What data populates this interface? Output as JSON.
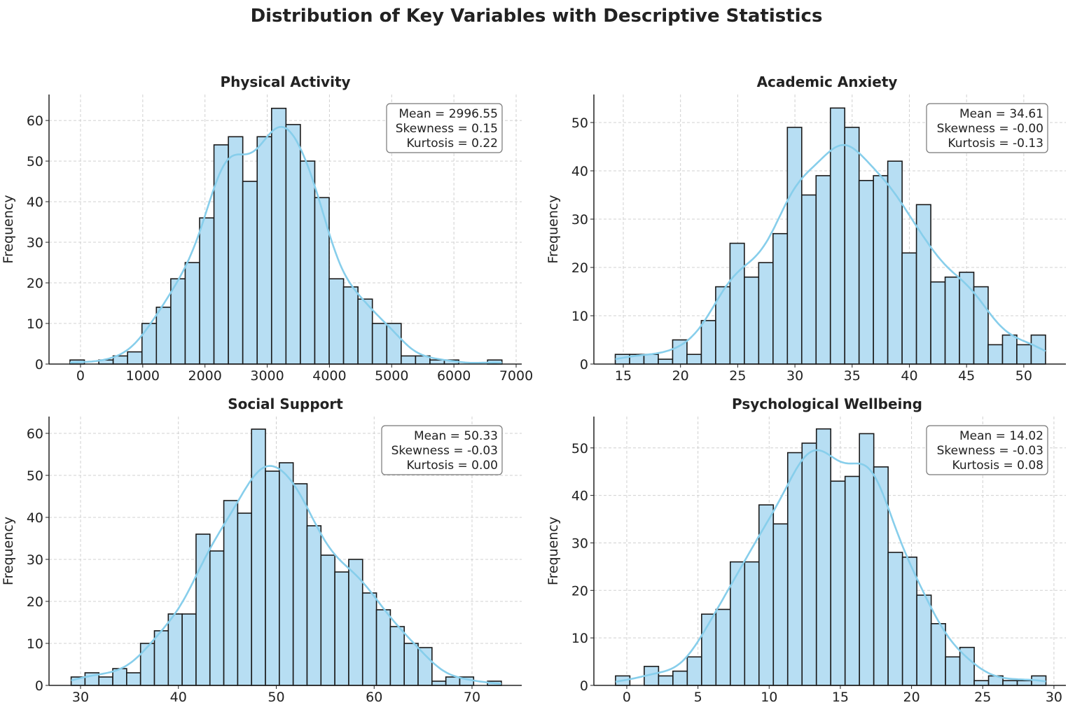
{
  "title": "Distribution of Key Variables with Descriptive Statistics",
  "colors": {
    "bar_fill": "#b7def3",
    "bar_edge": "#1a1a1a",
    "kde": "#87ceeb",
    "grid": "#d0d0d0"
  },
  "chart_data": [
    {
      "type": "bar",
      "title": "Physical Activity",
      "xlabel": "",
      "ylabel": "Frequency",
      "bin_range": [
        -169,
        6772
      ],
      "counts": [
        1,
        0,
        1,
        2,
        3,
        10,
        14,
        21,
        25,
        36,
        54,
        56,
        45,
        56,
        63,
        59,
        50,
        41,
        21,
        19,
        16,
        10,
        10,
        2,
        2,
        1,
        1,
        0,
        0,
        1
      ],
      "xlim": [
        -506,
        7090
      ],
      "ylim": [
        0,
        66.4
      ],
      "xticks": [
        "0",
        "1000",
        "2000",
        "3000",
        "4000",
        "5000",
        "6000",
        "7000"
      ],
      "xtick_values": [
        0,
        1000,
        2000,
        3000,
        4000,
        5000,
        6000,
        7000
      ],
      "yticks": [
        "0",
        "10",
        "20",
        "30",
        "40",
        "50",
        "60"
      ],
      "ytick_values": [
        0,
        10,
        20,
        30,
        40,
        50,
        60
      ],
      "stats": [
        "Mean = 2996.55",
        "Skewness = 0.15",
        "Kurtosis = 0.22"
      ],
      "kde": true,
      "grid": true
    },
    {
      "type": "bar",
      "title": "Academic Anxiety",
      "xlabel": "",
      "ylabel": "Frequency",
      "bin_range": [
        14.3,
        51.9
      ],
      "counts": [
        2,
        2,
        2,
        1,
        5,
        2,
        9,
        16,
        25,
        18,
        21,
        27,
        49,
        35,
        39,
        53,
        49,
        38,
        39,
        42,
        23,
        33,
        17,
        18,
        19,
        16,
        4,
        6,
        4,
        6
      ],
      "xlim": [
        12.43,
        53.68
      ],
      "ylim": [
        0,
        55.8
      ],
      "xticks": [
        "15",
        "20",
        "25",
        "30",
        "35",
        "40",
        "45",
        "50"
      ],
      "xtick_values": [
        15,
        20,
        25,
        30,
        35,
        40,
        45,
        50
      ],
      "yticks": [
        "0",
        "10",
        "20",
        "30",
        "40",
        "50"
      ],
      "ytick_values": [
        0,
        10,
        20,
        30,
        40,
        50
      ],
      "stats": [
        "Mean = 34.61",
        "Skewness = -0.00",
        "Kurtosis = -0.13"
      ],
      "kde": true,
      "grid": true
    },
    {
      "type": "bar",
      "title": "Social Support",
      "xlabel": "",
      "ylabel": "Frequency",
      "bin_range": [
        29.04,
        73.0
      ],
      "counts": [
        2,
        3,
        2,
        4,
        3,
        10,
        13,
        17,
        17,
        36,
        32,
        44,
        41,
        61,
        51,
        53,
        48,
        38,
        31,
        27,
        30,
        22,
        18,
        14,
        10,
        9,
        1,
        2,
        2,
        0,
        1
      ],
      "xlim": [
        26.78,
        75.08
      ],
      "ylim": [
        0,
        64
      ],
      "xticks": [
        "30",
        "40",
        "50",
        "60",
        "70"
      ],
      "xtick_values": [
        30,
        40,
        50,
        60,
        70
      ],
      "yticks": [
        "0",
        "10",
        "20",
        "30",
        "40",
        "50",
        "60"
      ],
      "ytick_values": [
        0,
        10,
        20,
        30,
        40,
        50,
        60
      ],
      "stats": [
        "Mean = 50.33",
        "Skewness = -0.03",
        "Kurtosis = 0.00"
      ],
      "kde": true,
      "grid": true
    },
    {
      "type": "bar",
      "title": "Psychological Wellbeing",
      "xlabel": "",
      "ylabel": "Frequency",
      "bin_range": [
        -0.79,
        29.44
      ],
      "counts": [
        2,
        0,
        4,
        2,
        3,
        6,
        15,
        16,
        26,
        26,
        38,
        34,
        49,
        51,
        54,
        43,
        44,
        53,
        46,
        28,
        27,
        19,
        13,
        6,
        8,
        1,
        2,
        1,
        1,
        2
      ],
      "xlim": [
        -2.31,
        30.84
      ],
      "ylim": [
        0,
        56.6
      ],
      "xticks": [
        "0",
        "5",
        "10",
        "15",
        "20",
        "25",
        "30"
      ],
      "xtick_values": [
        0,
        5,
        10,
        15,
        20,
        25,
        30
      ],
      "yticks": [
        "0",
        "10",
        "20",
        "30",
        "40",
        "50"
      ],
      "ytick_values": [
        0,
        10,
        20,
        30,
        40,
        50
      ],
      "stats": [
        "Mean = 14.02",
        "Skewness = -0.03",
        "Kurtosis = 0.08"
      ],
      "kde": true,
      "grid": true
    }
  ]
}
